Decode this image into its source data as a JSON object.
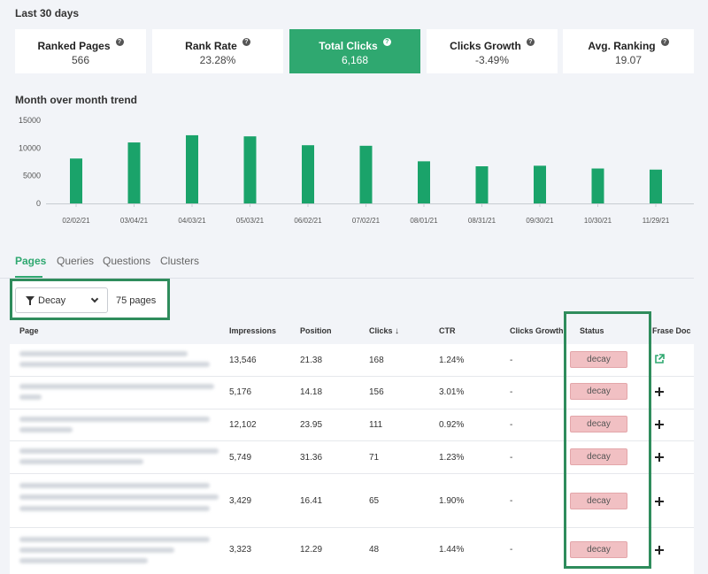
{
  "period_label": "Last 30 days",
  "cards": [
    {
      "title": "Ranked Pages",
      "value": "566",
      "help": "?"
    },
    {
      "title": "Rank Rate",
      "value": "23.28%",
      "help": "?"
    },
    {
      "title": "Total Clicks",
      "value": "6,168",
      "help": "?",
      "active": true
    },
    {
      "title": "Clicks Growth",
      "value": "-3.49%",
      "help": "?"
    },
    {
      "title": "Avg. Ranking",
      "value": "19.07",
      "help": "?"
    }
  ],
  "trend_title": "Month over month trend",
  "chart_data": {
    "type": "bar",
    "categories": [
      "02/02/21",
      "03/04/21",
      "04/03/21",
      "05/03/21",
      "06/02/21",
      "07/02/21",
      "08/01/21",
      "08/31/21",
      "09/30/21",
      "10/30/21",
      "11/29/21"
    ],
    "values": [
      8100,
      11000,
      12300,
      12100,
      10500,
      10400,
      7600,
      6700,
      6800,
      6300,
      6100
    ],
    "yticks": [
      0,
      5000,
      10000,
      15000
    ],
    "ylim": [
      0,
      15000
    ],
    "bar_color": "#1aa36a",
    "grid": false
  },
  "tabs": [
    {
      "label": "Pages",
      "active": true
    },
    {
      "label": "Queries"
    },
    {
      "label": "Questions"
    },
    {
      "label": "Clusters"
    }
  ],
  "filter": {
    "value": "Decay",
    "count": "75 pages"
  },
  "table": {
    "columns": {
      "page": "Page",
      "impressions": "Impressions",
      "position": "Position",
      "clicks": "Clicks",
      "clicks_sort": "↓",
      "ctr": "CTR",
      "growth": "Clicks Growth",
      "status": "Status",
      "frase": "Frase Doc"
    },
    "rows": [
      {
        "impressions": "13,546",
        "position": "21.38",
        "clicks": "168",
        "ctr": "1.24%",
        "growth": "-",
        "status": "decay",
        "doc": "external-link"
      },
      {
        "impressions": "5,176",
        "position": "14.18",
        "clicks": "156",
        "ctr": "3.01%",
        "growth": "-",
        "status": "decay",
        "doc": "plus"
      },
      {
        "impressions": "12,102",
        "position": "23.95",
        "clicks": "111",
        "ctr": "0.92%",
        "growth": "-",
        "status": "decay",
        "doc": "plus"
      },
      {
        "impressions": "5,749",
        "position": "31.36",
        "clicks": "71",
        "ctr": "1.23%",
        "growth": "-",
        "status": "decay",
        "doc": "plus"
      },
      {
        "impressions": "3,429",
        "position": "16.41",
        "clicks": "65",
        "ctr": "1.90%",
        "growth": "-",
        "status": "decay",
        "doc": "plus"
      },
      {
        "impressions": "3,323",
        "position": "12.29",
        "clicks": "48",
        "ctr": "1.44%",
        "growth": "-",
        "status": "decay",
        "doc": "plus"
      }
    ]
  },
  "colors": {
    "accent": "#2fa870",
    "highlight": "#2f8c5c",
    "badge": "#f1c0c3"
  }
}
